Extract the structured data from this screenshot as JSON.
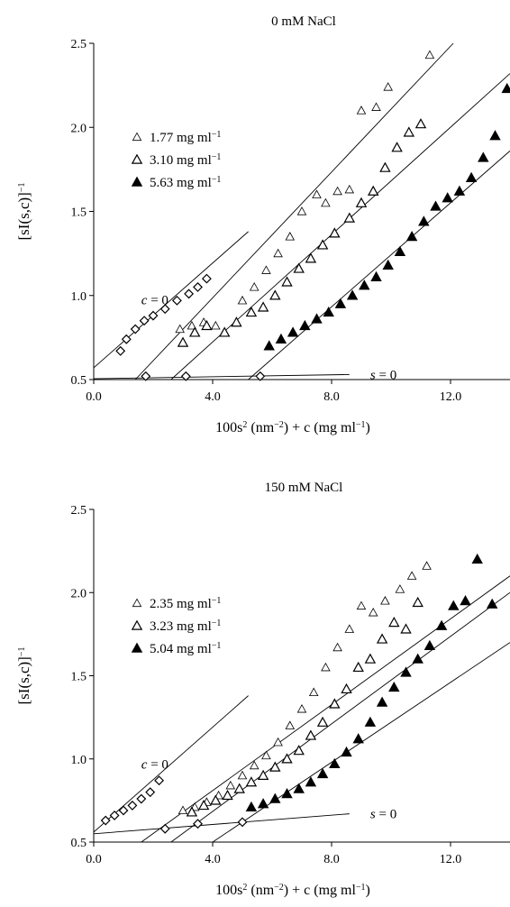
{
  "chart_data": [
    {
      "type": "scatter",
      "title": "0 mM NaCl",
      "xlabel": "100s² (nm⁻²) + c (mg ml⁻¹)",
      "ylabel": "[sI(s,c)]⁻¹",
      "xlim": [
        0,
        14
      ],
      "ylim": [
        0.5,
        2.5
      ],
      "xticks": [
        "0.0",
        "4.0",
        "8.0",
        "12.0"
      ],
      "xtick_values": [
        0,
        4,
        8,
        12
      ],
      "yticks": [
        "0.5",
        "1.0",
        "1.5",
        "2.0",
        "2.5"
      ],
      "ytick_values": [
        0.5,
        1.0,
        1.5,
        2.0,
        2.5
      ],
      "legend_position": "upper-left",
      "series": [
        {
          "name": "1.77 mg ml⁻¹",
          "marker": "open-triangle-small",
          "points": [
            [
              2.9,
              0.8
            ],
            [
              3.3,
              0.82
            ],
            [
              3.7,
              0.84
            ],
            [
              4.1,
              0.82
            ],
            [
              5.0,
              0.97
            ],
            [
              5.4,
              1.05
            ],
            [
              5.8,
              1.15
            ],
            [
              6.2,
              1.25
            ],
            [
              6.6,
              1.35
            ],
            [
              7.0,
              1.5
            ],
            [
              7.5,
              1.6
            ],
            [
              7.8,
              1.55
            ],
            [
              8.2,
              1.62
            ],
            [
              8.6,
              1.63
            ],
            [
              9.0,
              2.1
            ],
            [
              9.5,
              2.12
            ],
            [
              9.9,
              2.24
            ],
            [
              11.3,
              2.43
            ]
          ]
        },
        {
          "name": "3.10 mg ml⁻¹",
          "marker": "open-triangle",
          "points": [
            [
              3.0,
              0.72
            ],
            [
              3.4,
              0.78
            ],
            [
              3.8,
              0.82
            ],
            [
              4.4,
              0.78
            ],
            [
              4.8,
              0.84
            ],
            [
              5.3,
              0.9
            ],
            [
              5.7,
              0.93
            ],
            [
              6.1,
              1.0
            ],
            [
              6.5,
              1.08
            ],
            [
              6.9,
              1.16
            ],
            [
              7.3,
              1.22
            ],
            [
              7.7,
              1.3
            ],
            [
              8.1,
              1.37
            ],
            [
              8.6,
              1.46
            ],
            [
              9.0,
              1.55
            ],
            [
              9.4,
              1.62
            ],
            [
              9.8,
              1.76
            ],
            [
              10.2,
              1.88
            ],
            [
              10.6,
              1.97
            ],
            [
              11.0,
              2.02
            ]
          ]
        },
        {
          "name": "5.63 mg ml⁻¹",
          "marker": "filled-triangle",
          "points": [
            [
              5.9,
              0.7
            ],
            [
              6.3,
              0.74
            ],
            [
              6.7,
              0.78
            ],
            [
              7.1,
              0.82
            ],
            [
              7.5,
              0.86
            ],
            [
              7.9,
              0.9
            ],
            [
              8.3,
              0.95
            ],
            [
              8.7,
              1.0
            ],
            [
              9.1,
              1.06
            ],
            [
              9.5,
              1.11
            ],
            [
              9.9,
              1.18
            ],
            [
              10.3,
              1.26
            ],
            [
              10.7,
              1.35
            ],
            [
              11.1,
              1.44
            ],
            [
              11.5,
              1.53
            ],
            [
              11.9,
              1.58
            ],
            [
              12.3,
              1.62
            ],
            [
              12.7,
              1.7
            ],
            [
              13.1,
              1.82
            ],
            [
              13.5,
              1.95
            ],
            [
              13.9,
              2.23
            ]
          ]
        },
        {
          "name": "",
          "marker": "open-diamond",
          "points": [
            [
              0.9,
              0.67
            ],
            [
              1.1,
              0.74
            ],
            [
              1.4,
              0.8
            ],
            [
              1.7,
              0.85
            ],
            [
              2.0,
              0.88
            ],
            [
              2.4,
              0.92
            ],
            [
              2.8,
              0.97
            ],
            [
              3.2,
              1.01
            ],
            [
              3.5,
              1.05
            ],
            [
              3.8,
              1.1
            ],
            [
              1.75,
              0.52
            ],
            [
              3.1,
              0.52
            ],
            [
              5.6,
              0.52
            ]
          ]
        }
      ],
      "fit_lines": [
        {
          "label": "c = 0",
          "from": [
            0,
            0.57
          ],
          "to": [
            5.2,
            1.38
          ]
        },
        {
          "label": "s = 0",
          "from": [
            0,
            0.505
          ],
          "to": [
            8.6,
            0.53
          ]
        },
        {
          "label": "",
          "from": [
            1.4,
            0.5
          ],
          "to": [
            12.2,
            2.52
          ]
        },
        {
          "label": "",
          "from": [
            2.6,
            0.5
          ],
          "to": [
            14,
            2.32
          ]
        },
        {
          "label": "",
          "from": [
            5.2,
            0.5
          ],
          "to": [
            14,
            1.86
          ]
        }
      ]
    },
    {
      "type": "scatter",
      "title": "150 mM NaCl",
      "xlabel": "100s² (nm⁻²) + c (mg ml⁻¹)",
      "ylabel": "[sI(s,c)]⁻¹",
      "xlim": [
        0,
        14
      ],
      "ylim": [
        0.5,
        2.5
      ],
      "xticks": [
        "0.0",
        "4.0",
        "8.0",
        "12.0"
      ],
      "xtick_values": [
        0,
        4,
        8,
        12
      ],
      "yticks": [
        "0.5",
        "1.0",
        "1.5",
        "2.0",
        "2.5"
      ],
      "ytick_values": [
        0.5,
        1.0,
        1.5,
        2.0,
        2.5
      ],
      "legend_position": "upper-left",
      "series": [
        {
          "name": "2.35 mg ml⁻¹",
          "marker": "open-triangle-small",
          "points": [
            [
              3.0,
              0.69
            ],
            [
              3.4,
              0.71
            ],
            [
              3.8,
              0.74
            ],
            [
              4.2,
              0.78
            ],
            [
              4.6,
              0.84
            ],
            [
              5.0,
              0.9
            ],
            [
              5.4,
              0.96
            ],
            [
              5.8,
              1.02
            ],
            [
              6.2,
              1.1
            ],
            [
              6.6,
              1.2
            ],
            [
              7.0,
              1.3
            ],
            [
              7.4,
              1.4
            ],
            [
              7.8,
              1.55
            ],
            [
              8.2,
              1.67
            ],
            [
              8.6,
              1.78
            ],
            [
              9.0,
              1.92
            ],
            [
              9.4,
              1.88
            ],
            [
              9.8,
              1.95
            ],
            [
              10.3,
              2.02
            ],
            [
              10.7,
              2.1
            ],
            [
              11.2,
              2.16
            ]
          ]
        },
        {
          "name": "3.23 mg ml⁻¹",
          "marker": "open-triangle",
          "points": [
            [
              3.3,
              0.68
            ],
            [
              3.7,
              0.72
            ],
            [
              4.1,
              0.75
            ],
            [
              4.5,
              0.78
            ],
            [
              4.9,
              0.82
            ],
            [
              5.3,
              0.86
            ],
            [
              5.7,
              0.9
            ],
            [
              6.1,
              0.95
            ],
            [
              6.5,
              1.0
            ],
            [
              6.9,
              1.05
            ],
            [
              7.3,
              1.14
            ],
            [
              7.7,
              1.22
            ],
            [
              8.1,
              1.33
            ],
            [
              8.5,
              1.42
            ],
            [
              8.9,
              1.55
            ],
            [
              9.3,
              1.6
            ],
            [
              9.7,
              1.72
            ],
            [
              10.1,
              1.82
            ],
            [
              10.5,
              1.78
            ],
            [
              10.9,
              1.94
            ]
          ]
        },
        {
          "name": "5.04 mg ml⁻¹",
          "marker": "filled-triangle",
          "points": [
            [
              5.3,
              0.71
            ],
            [
              5.7,
              0.73
            ],
            [
              6.1,
              0.76
            ],
            [
              6.5,
              0.79
            ],
            [
              6.9,
              0.82
            ],
            [
              7.3,
              0.86
            ],
            [
              7.7,
              0.91
            ],
            [
              8.1,
              0.97
            ],
            [
              8.5,
              1.04
            ],
            [
              8.9,
              1.12
            ],
            [
              9.3,
              1.22
            ],
            [
              9.7,
              1.34
            ],
            [
              10.1,
              1.43
            ],
            [
              10.5,
              1.52
            ],
            [
              10.9,
              1.6
            ],
            [
              11.3,
              1.68
            ],
            [
              11.7,
              1.8
            ],
            [
              12.1,
              1.92
            ],
            [
              12.5,
              1.95
            ],
            [
              12.9,
              2.2
            ],
            [
              13.4,
              1.93
            ]
          ]
        },
        {
          "name": "",
          "marker": "open-diamond",
          "points": [
            [
              0.4,
              0.63
            ],
            [
              0.7,
              0.66
            ],
            [
              1.0,
              0.69
            ],
            [
              1.3,
              0.72
            ],
            [
              1.6,
              0.76
            ],
            [
              1.9,
              0.8
            ],
            [
              2.2,
              0.87
            ],
            [
              2.4,
              0.58
            ],
            [
              3.5,
              0.61
            ],
            [
              5.0,
              0.62
            ]
          ]
        }
      ],
      "fit_lines": [
        {
          "label": "c = 0",
          "from": [
            0,
            0.56
          ],
          "to": [
            5.2,
            1.38
          ]
        },
        {
          "label": "s = 0",
          "from": [
            0,
            0.55
          ],
          "to": [
            8.6,
            0.67
          ]
        },
        {
          "label": "",
          "from": [
            1.6,
            0.5
          ],
          "to": [
            14,
            2.1
          ]
        },
        {
          "label": "",
          "from": [
            2.6,
            0.5
          ],
          "to": [
            14,
            2.0
          ]
        },
        {
          "label": "",
          "from": [
            4.0,
            0.5
          ],
          "to": [
            14,
            1.7
          ]
        }
      ]
    }
  ]
}
